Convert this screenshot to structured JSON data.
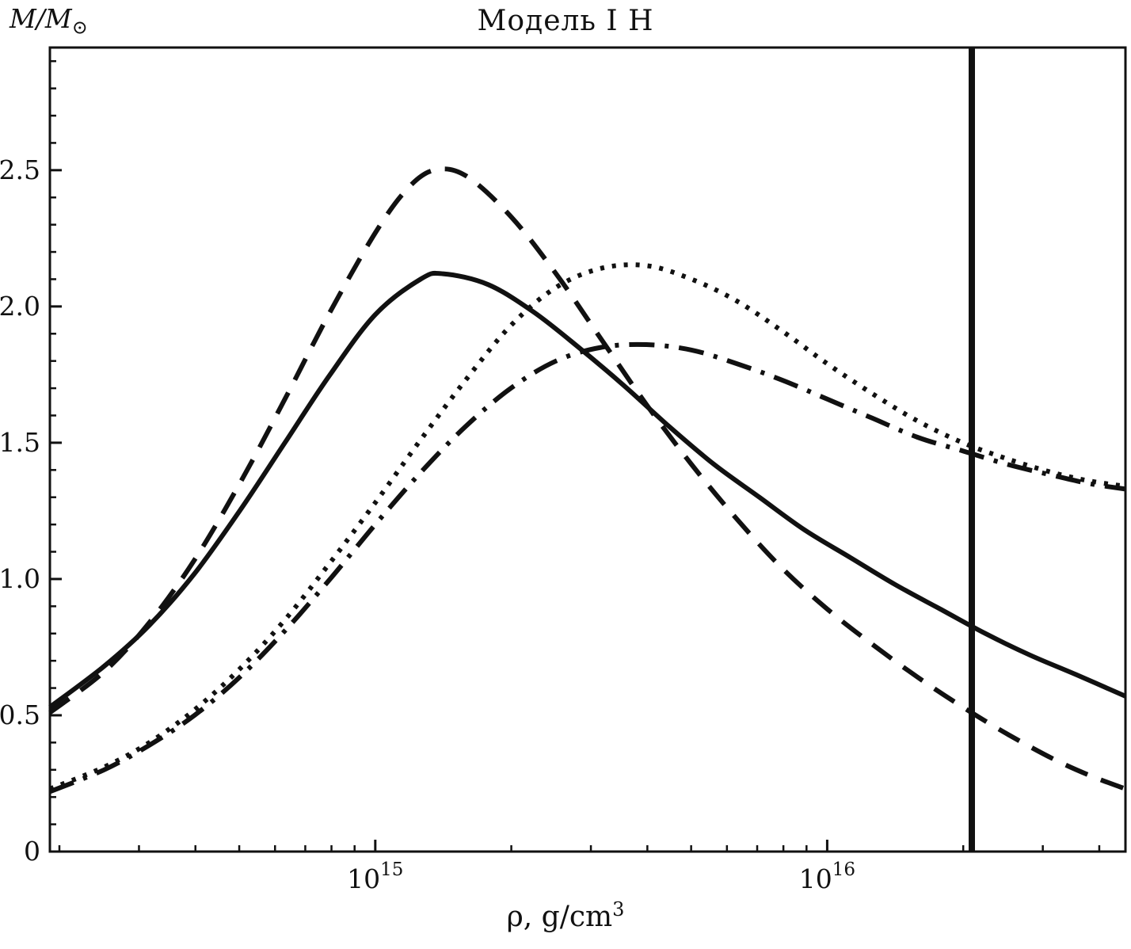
{
  "title": "Модель I Н",
  "ylabel": {
    "main": "M/M",
    "sub": "⊙"
  },
  "xlabel": {
    "main": "ρ, g/cm",
    "sup": "3"
  },
  "chart_data": {
    "type": "line",
    "title": "Модель I Н",
    "xlabel": "ρ, g/cm³",
    "ylabel": "M/M⊙",
    "x_axis": {
      "scale": "log10",
      "min": 14.28,
      "max": 16.66,
      "ticks": [
        {
          "label_base": "10",
          "label_exp": "15",
          "log": 15
        },
        {
          "label_base": "10",
          "label_exp": "16",
          "log": 16
        }
      ],
      "minor_decades": [
        14,
        15,
        16
      ]
    },
    "y_axis": {
      "min": 0,
      "max": 2.95,
      "ticks": [
        {
          "label": "0",
          "value": 0
        },
        {
          "label": "0.5",
          "value": 0.5
        },
        {
          "label": "1.0",
          "value": 1.0
        },
        {
          "label": "1.5",
          "value": 1.5
        },
        {
          "label": "2.0",
          "value": 2.0
        },
        {
          "label": "2.5",
          "value": 2.5
        }
      ],
      "minor_step": 0.1
    },
    "vertical_line": {
      "log_x": 16.32
    },
    "series": [
      {
        "name": "solid-curve",
        "style": "solid",
        "points": [
          [
            14.28,
            0.53
          ],
          [
            14.4,
            0.68
          ],
          [
            14.5,
            0.83
          ],
          [
            14.6,
            1.02
          ],
          [
            14.7,
            1.25
          ],
          [
            14.8,
            1.5
          ],
          [
            14.9,
            1.75
          ],
          [
            15.0,
            1.97
          ],
          [
            15.1,
            2.1
          ],
          [
            15.15,
            2.12
          ],
          [
            15.25,
            2.08
          ],
          [
            15.35,
            1.98
          ],
          [
            15.45,
            1.85
          ],
          [
            15.55,
            1.71
          ],
          [
            15.65,
            1.56
          ],
          [
            15.75,
            1.42
          ],
          [
            15.85,
            1.3
          ],
          [
            15.95,
            1.18
          ],
          [
            16.05,
            1.08
          ],
          [
            16.15,
            0.98
          ],
          [
            16.25,
            0.89
          ],
          [
            16.35,
            0.8
          ],
          [
            16.45,
            0.72
          ],
          [
            16.55,
            0.65
          ],
          [
            16.66,
            0.57
          ]
        ]
      },
      {
        "name": "dashed-curve",
        "style": "dashed",
        "points": [
          [
            14.28,
            0.51
          ],
          [
            14.4,
            0.66
          ],
          [
            14.5,
            0.84
          ],
          [
            14.6,
            1.07
          ],
          [
            14.7,
            1.35
          ],
          [
            14.8,
            1.66
          ],
          [
            14.9,
            1.98
          ],
          [
            15.0,
            2.27
          ],
          [
            15.07,
            2.43
          ],
          [
            15.13,
            2.5
          ],
          [
            15.2,
            2.48
          ],
          [
            15.3,
            2.33
          ],
          [
            15.4,
            2.12
          ],
          [
            15.5,
            1.88
          ],
          [
            15.6,
            1.64
          ],
          [
            15.7,
            1.42
          ],
          [
            15.8,
            1.22
          ],
          [
            15.9,
            1.04
          ],
          [
            16.0,
            0.89
          ],
          [
            16.1,
            0.76
          ],
          [
            16.2,
            0.64
          ],
          [
            16.3,
            0.53
          ],
          [
            16.4,
            0.43
          ],
          [
            16.5,
            0.34
          ],
          [
            16.58,
            0.28
          ],
          [
            16.66,
            0.23
          ]
        ]
      },
      {
        "name": "dotted-curve",
        "style": "dotted",
        "points": [
          [
            14.28,
            0.23
          ],
          [
            14.4,
            0.31
          ],
          [
            14.5,
            0.4
          ],
          [
            14.6,
            0.52
          ],
          [
            14.7,
            0.67
          ],
          [
            14.8,
            0.85
          ],
          [
            14.9,
            1.06
          ],
          [
            15.0,
            1.28
          ],
          [
            15.1,
            1.51
          ],
          [
            15.2,
            1.73
          ],
          [
            15.3,
            1.93
          ],
          [
            15.4,
            2.07
          ],
          [
            15.5,
            2.14
          ],
          [
            15.6,
            2.15
          ],
          [
            15.7,
            2.1
          ],
          [
            15.8,
            2.02
          ],
          [
            15.9,
            1.91
          ],
          [
            16.0,
            1.79
          ],
          [
            16.1,
            1.68
          ],
          [
            16.2,
            1.58
          ],
          [
            16.3,
            1.5
          ],
          [
            16.4,
            1.44
          ],
          [
            16.5,
            1.39
          ],
          [
            16.58,
            1.36
          ],
          [
            16.66,
            1.34
          ]
        ]
      },
      {
        "name": "dash-dot-curve",
        "style": "dashdot",
        "points": [
          [
            14.28,
            0.22
          ],
          [
            14.4,
            0.3
          ],
          [
            14.5,
            0.39
          ],
          [
            14.6,
            0.5
          ],
          [
            14.7,
            0.64
          ],
          [
            14.8,
            0.81
          ],
          [
            14.9,
            1.0
          ],
          [
            15.0,
            1.2
          ],
          [
            15.1,
            1.39
          ],
          [
            15.2,
            1.56
          ],
          [
            15.3,
            1.7
          ],
          [
            15.4,
            1.8
          ],
          [
            15.5,
            1.85
          ],
          [
            15.6,
            1.86
          ],
          [
            15.7,
            1.84
          ],
          [
            15.8,
            1.79
          ],
          [
            15.9,
            1.73
          ],
          [
            16.0,
            1.66
          ],
          [
            16.1,
            1.59
          ],
          [
            16.2,
            1.52
          ],
          [
            16.3,
            1.47
          ],
          [
            16.4,
            1.42
          ],
          [
            16.5,
            1.38
          ],
          [
            16.58,
            1.35
          ],
          [
            16.66,
            1.33
          ]
        ]
      }
    ],
    "colors": {
      "line": "#111111",
      "background": "#ffffff"
    }
  }
}
